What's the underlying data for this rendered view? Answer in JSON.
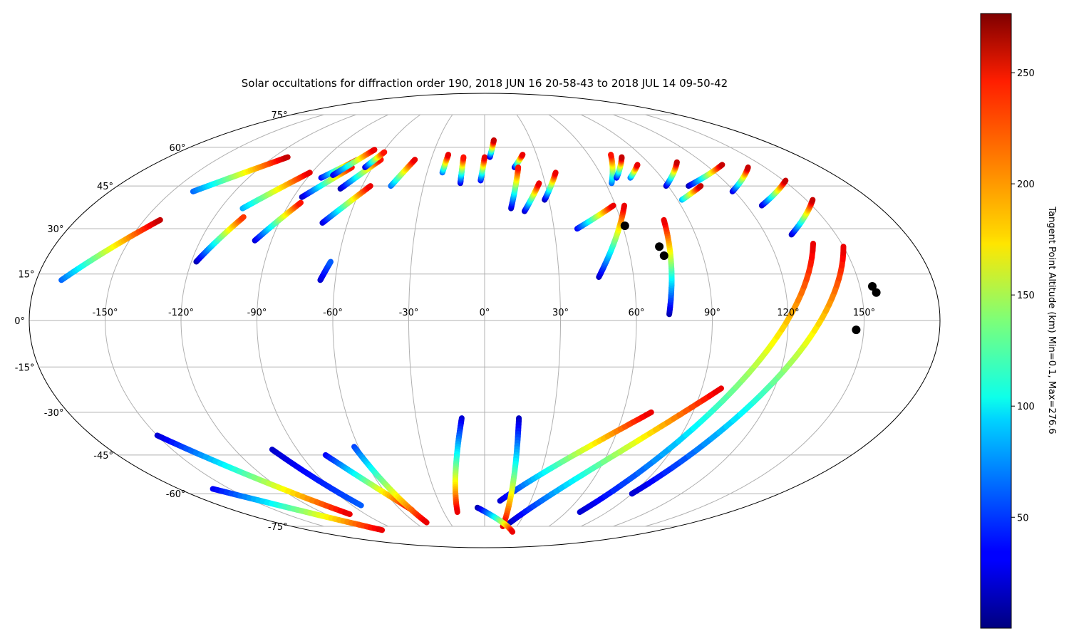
{
  "figure": {
    "title": "Solar occultations for diffraction order 190, 2018 JUN 16 20-58-43 to 2018 JUL 14 09-50-42"
  },
  "map": {
    "projection": "mollweide",
    "grid": true,
    "lon_labels": [
      "-150°",
      "-120°",
      "-90°",
      "-60°",
      "-30°",
      "0°",
      "30°",
      "60°",
      "90°",
      "120°",
      "150°"
    ],
    "lat_labels": [
      {
        "lat": 75,
        "text": "75°"
      },
      {
        "lat": 60,
        "text": "60°"
      },
      {
        "lat": 45,
        "text": "45°"
      },
      {
        "lat": 30,
        "text": "30°"
      },
      {
        "lat": 15,
        "text": "15°"
      },
      {
        "lat": 0,
        "text": "0°"
      },
      {
        "lat": -15,
        "text": "-15°"
      },
      {
        "lat": -30,
        "text": "-30°"
      },
      {
        "lat": -45,
        "text": "-45°"
      },
      {
        "lat": -60,
        "text": "-60°"
      },
      {
        "lat": -75,
        "text": "-75°"
      }
    ]
  },
  "colorbar": {
    "label": "Tangent Point Altitude (km) Min=0.1, Max=276.6",
    "colormap": "jet",
    "min": 0.1,
    "max": 276.6,
    "ticks": [
      {
        "value": 50,
        "text": "50"
      },
      {
        "value": 100,
        "text": "100"
      },
      {
        "value": 150,
        "text": "150"
      },
      {
        "value": 200,
        "text": "200"
      },
      {
        "value": 250,
        "text": "250"
      }
    ]
  },
  "chart_data": {
    "type": "scatter",
    "x_unit": "longitude (deg)",
    "y_unit": "latitude (deg)",
    "color_unit": "tangent point altitude (km)",
    "tracks": [
      {
        "lat": [
          13,
          33
        ],
        "lon": [
          -170,
          -143
        ],
        "alt": [
          60,
          260
        ]
      },
      {
        "lat": [
          43,
          56
        ],
        "lon": [
          -140,
          -112
        ],
        "alt": [
          60,
          260
        ]
      },
      {
        "lat": [
          37,
          50
        ],
        "lon": [
          -110,
          -91
        ],
        "alt": [
          80,
          250
        ]
      },
      {
        "lat": [
          19,
          34
        ],
        "lon": [
          -118,
          -107
        ],
        "alt": [
          10,
          230
        ]
      },
      {
        "lat": [
          26,
          39
        ],
        "lon": [
          -97,
          -85
        ],
        "alt": [
          20,
          240
        ]
      },
      {
        "lat": [
          41,
          52
        ],
        "lon": [
          -86,
          -71
        ],
        "alt": [
          15,
          240
        ]
      },
      {
        "lat": [
          48,
          55
        ],
        "lon": [
          -83,
          -71
        ],
        "alt": [
          30,
          250
        ]
      },
      {
        "lat": [
          49,
          59
        ],
        "lon": [
          -78,
          -66
        ],
        "alt": [
          20,
          250
        ]
      },
      {
        "lat": [
          44,
          55
        ],
        "lon": [
          -70,
          -58
        ],
        "alt": [
          10,
          240
        ]
      },
      {
        "lat": [
          52,
          58
        ],
        "lon": [
          -64,
          -59
        ],
        "alt": [
          20,
          240
        ]
      },
      {
        "lat": [
          32,
          45
        ],
        "lon": [
          -71,
          -56
        ],
        "alt": [
          20,
          250
        ]
      },
      {
        "lat": [
          45,
          55
        ],
        "lon": [
          -46,
          -39
        ],
        "alt": [
          60,
          250
        ]
      },
      {
        "lat": [
          50,
          57
        ],
        "lon": [
          -22,
          -21
        ],
        "alt": [
          60,
          250
        ]
      },
      {
        "lat": [
          46,
          56
        ],
        "lon": [
          -12,
          -12
        ],
        "alt": [
          20,
          240
        ]
      },
      {
        "lat": [
          47,
          56
        ],
        "lon": [
          -2,
          0
        ],
        "alt": [
          30,
          250
        ]
      },
      {
        "lat": [
          56,
          63
        ],
        "lon": [
          3,
          6
        ],
        "alt": [
          20,
          260
        ]
      },
      {
        "lat": [
          13,
          19
        ],
        "lon": [
          -66,
          -63
        ],
        "alt": [
          20,
          60
        ]
      },
      {
        "lat": [
          52,
          57
        ],
        "lon": [
          16,
          22
        ],
        "alt": [
          20,
          250
        ]
      },
      {
        "lat": [
          37,
          52
        ],
        "lon": [
          12,
          18
        ],
        "alt": [
          15,
          240
        ]
      },
      {
        "lat": [
          36,
          46
        ],
        "lon": [
          18,
          27
        ],
        "alt": [
          15,
          250
        ]
      },
      {
        "lat": [
          40,
          50
        ],
        "lon": [
          28,
          37
        ],
        "alt": [
          10,
          250
        ]
      },
      {
        "lat": [
          30,
          38
        ],
        "lon": [
          40,
          59
        ],
        "alt": [
          30,
          250
        ]
      },
      {
        "lat": [
          14,
          38
        ],
        "lon": [
          46,
          64
        ],
        "alt": [
          15,
          250
        ]
      },
      {
        "lat": [
          46,
          57
        ],
        "lon": [
          63,
          73
        ],
        "alt": [
          60,
          240
        ]
      },
      {
        "lat": [
          48,
          56
        ],
        "lon": [
          67,
          78
        ],
        "alt": [
          30,
          260
        ]
      },
      {
        "lat": [
          48,
          53
        ],
        "lon": [
          74,
          83
        ],
        "alt": [
          60,
          250
        ]
      },
      {
        "lat": [
          2,
          33
        ],
        "lon": [
          73,
          79
        ],
        "alt": [
          10,
          250
        ]
      },
      {
        "lat": [
          45,
          54
        ],
        "lon": [
          89,
          106
        ],
        "alt": [
          15,
          260
        ]
      },
      {
        "lat": [
          40,
          45
        ],
        "lon": [
          92,
          106
        ],
        "alt": [
          80,
          260
        ]
      },
      {
        "lat": [
          45,
          53
        ],
        "lon": [
          100,
          129
        ],
        "alt": [
          10,
          260
        ]
      },
      {
        "lat": [
          43,
          52
        ],
        "lon": [
          119,
          141
        ],
        "alt": [
          20,
          260
        ]
      },
      {
        "lat": [
          38,
          47
        ],
        "lon": [
          127,
          151
        ],
        "alt": [
          15,
          260
        ]
      },
      {
        "lat": [
          28,
          40
        ],
        "lon": [
          131,
          153
        ],
        "alt": [
          15,
          260
        ]
      },
      {
        "lat": [
          -63,
          -30
        ],
        "lon": [
          10,
          72
        ],
        "alt": [
          20,
          250
        ]
      },
      {
        "lat": [
          -73,
          -22
        ],
        "lon": [
          22,
          98
        ],
        "alt": [
          15,
          250
        ]
      },
      {
        "lat": [
          -68,
          25
        ],
        "lon": [
          70,
          138
        ],
        "alt": [
          20,
          250
        ]
      },
      {
        "lat": [
          -60,
          24
        ],
        "lon": [
          90,
          150
        ],
        "alt": [
          20,
          250
        ]
      },
      {
        "lat": [
          -43,
          -65
        ],
        "lon": [
          -102,
          -84
        ],
        "alt": [
          20,
          60
        ]
      },
      {
        "lat": [
          -38,
          -69
        ],
        "lon": [
          -150,
          -102
        ],
        "alt": [
          20,
          250
        ]
      },
      {
        "lat": [
          -58,
          -77
        ],
        "lon": [
          -160,
          -105
        ],
        "alt": [
          30,
          250
        ]
      },
      {
        "lat": [
          -45,
          -67
        ],
        "lon": [
          -78,
          -52
        ],
        "alt": [
          30,
          250
        ]
      },
      {
        "lat": [
          -42,
          -73
        ],
        "lon": [
          -62,
          -50
        ],
        "alt": [
          50,
          250
        ]
      },
      {
        "lat": [
          -32,
          -68
        ],
        "lon": [
          -10,
          -20
        ],
        "alt": [
          20,
          250
        ]
      },
      {
        "lat": [
          -32,
          -75
        ],
        "lon": [
          15,
          17
        ],
        "alt": [
          15,
          250
        ]
      },
      {
        "lat": [
          -66,
          -78
        ],
        "lon": [
          -5,
          30
        ],
        "alt": [
          10,
          250
        ]
      }
    ],
    "markers": [
      {
        "lat": 31,
        "lon": 61
      },
      {
        "lat": 24,
        "lon": 73
      },
      {
        "lat": 21,
        "lon": 74
      },
      {
        "lat": 11,
        "lon": 155
      },
      {
        "lat": 9,
        "lon": 156
      },
      {
        "lat": -3,
        "lon": 147
      }
    ]
  }
}
